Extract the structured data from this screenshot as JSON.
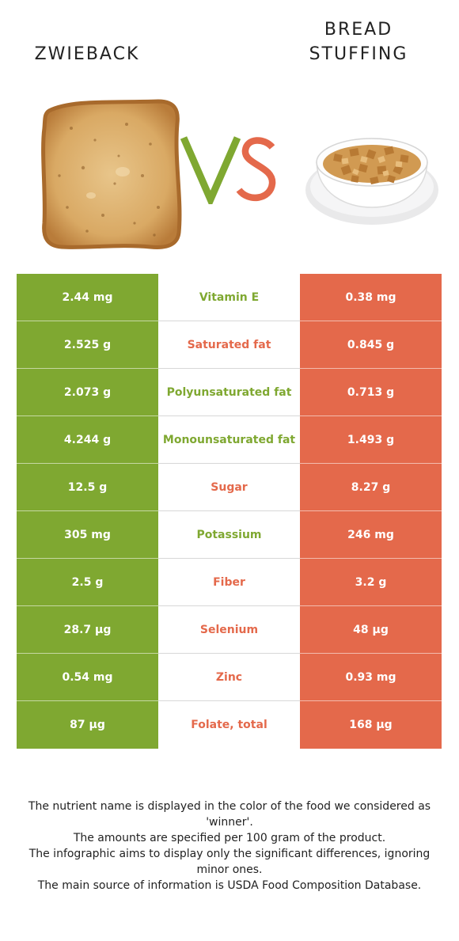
{
  "foods": {
    "left": {
      "name": "ZWIEBACK",
      "color": "#7fa831"
    },
    "right": {
      "name_line1": "BREAD",
      "name_line2": "STUFFING",
      "color": "#e4694b"
    }
  },
  "vs_label": "VS",
  "rows": [
    {
      "nutrient": "Vitamin E",
      "left": "2.44 mg",
      "right": "0.38 mg",
      "winner": "left"
    },
    {
      "nutrient": "Saturated fat",
      "left": "2.525 g",
      "right": "0.845 g",
      "winner": "right"
    },
    {
      "nutrient": "Polyunsaturated fat",
      "left": "2.073 g",
      "right": "0.713 g",
      "winner": "left"
    },
    {
      "nutrient": "Monounsaturated fat",
      "left": "4.244 g",
      "right": "1.493 g",
      "winner": "left"
    },
    {
      "nutrient": "Sugar",
      "left": "12.5 g",
      "right": "8.27 g",
      "winner": "right"
    },
    {
      "nutrient": "Potassium",
      "left": "305 mg",
      "right": "246 mg",
      "winner": "left"
    },
    {
      "nutrient": "Fiber",
      "left": "2.5 g",
      "right": "3.2 g",
      "winner": "right"
    },
    {
      "nutrient": "Selenium",
      "left": "28.7 µg",
      "right": "48 µg",
      "winner": "right"
    },
    {
      "nutrient": "Zinc",
      "left": "0.54 mg",
      "right": "0.93 mg",
      "winner": "right"
    },
    {
      "nutrient": "Folate, total",
      "left": "87 µg",
      "right": "168 µg",
      "winner": "right"
    }
  ],
  "footer": {
    "line1": "The nutrient name is displayed in the color of the food we considered as 'winner'.",
    "line2": "The amounts are specified per 100 gram of the product.",
    "line3": "The infographic aims to display only the significant differences, ignoring minor ones.",
    "line4": "The main source of information is USDA Food Composition Database."
  }
}
